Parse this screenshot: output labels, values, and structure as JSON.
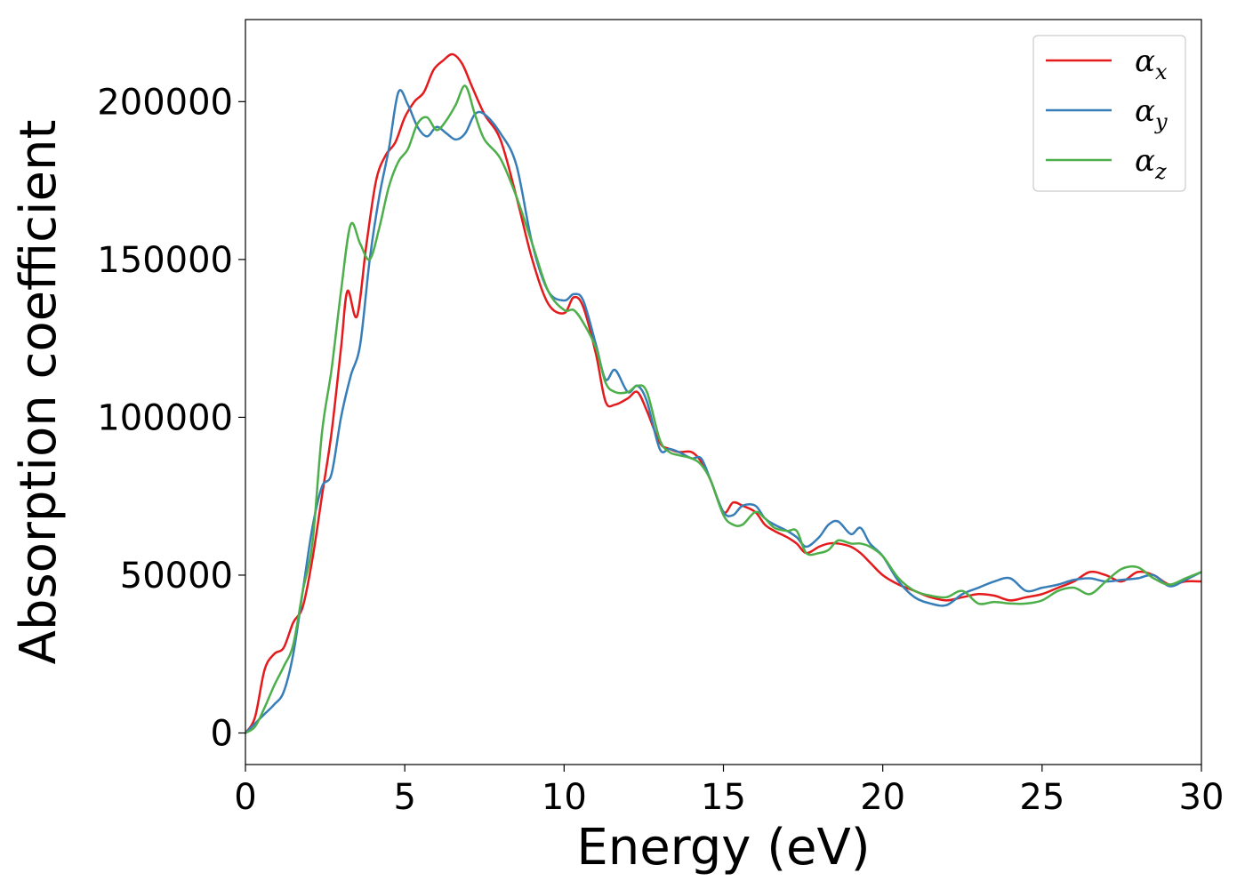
{
  "chart_data": {
    "type": "line",
    "title": "",
    "xlabel": "Energy (eV)",
    "ylabel": "Absorption coefficient",
    "xlim": [
      0,
      30
    ],
    "ylim": [
      -10000,
      226000
    ],
    "xticks": [
      0,
      5,
      10,
      15,
      20,
      25,
      30
    ],
    "yticks": [
      0,
      50000,
      100000,
      150000,
      200000
    ],
    "legend_position": "top-right",
    "grid": false,
    "series": [
      {
        "name": "α",
        "subscript": "x",
        "color": "#e41a1c",
        "x": [
          0,
          0.3,
          0.6,
          0.9,
          1.2,
          1.5,
          1.8,
          2.1,
          2.4,
          2.7,
          3.0,
          3.2,
          3.5,
          3.8,
          4.1,
          4.4,
          4.7,
          5.0,
          5.3,
          5.6,
          5.9,
          6.2,
          6.5,
          6.8,
          7.1,
          7.5,
          8.0,
          8.5,
          9.0,
          9.5,
          10.0,
          10.3,
          10.6,
          11.0,
          11.3,
          11.6,
          12.0,
          12.3,
          12.6,
          13.0,
          13.3,
          13.6,
          14.0,
          14.3,
          14.6,
          15.0,
          15.3,
          15.6,
          16.0,
          16.3,
          16.6,
          17.0,
          17.3,
          17.6,
          18.0,
          18.3,
          18.6,
          19.0,
          19.3,
          19.6,
          20.0,
          20.5,
          21.0,
          21.5,
          22.0,
          22.5,
          23.0,
          23.5,
          24.0,
          24.5,
          25.0,
          25.5,
          26.0,
          26.5,
          27.0,
          27.5,
          28.0,
          28.5,
          29.0,
          29.5,
          30.0
        ],
        "y": [
          0,
          5000,
          20000,
          25000,
          27000,
          35000,
          40000,
          55000,
          75000,
          95000,
          122000,
          140000,
          132000,
          155000,
          175000,
          183000,
          187000,
          195000,
          200000,
          203000,
          210000,
          213000,
          215000,
          212000,
          205000,
          196000,
          188000,
          170000,
          150000,
          136000,
          133000,
          138000,
          135000,
          120000,
          105000,
          104000,
          106000,
          108000,
          102000,
          92000,
          90000,
          89000,
          89000,
          86000,
          80000,
          70000,
          73000,
          72000,
          70000,
          66000,
          64000,
          62000,
          60000,
          57000,
          59000,
          60000,
          60000,
          59000,
          57000,
          54000,
          50000,
          47000,
          45000,
          43000,
          42000,
          43000,
          44000,
          43500,
          42000,
          43000,
          44000,
          46000,
          48000,
          51000,
          50000,
          48000,
          51000,
          50000,
          47000,
          48000,
          48000
        ]
      },
      {
        "name": "α",
        "subscript": "y",
        "color": "#377eb8",
        "x": [
          0,
          0.3,
          0.6,
          0.9,
          1.2,
          1.5,
          1.8,
          2.1,
          2.4,
          2.7,
          3.0,
          3.3,
          3.6,
          3.9,
          4.2,
          4.5,
          4.8,
          5.1,
          5.4,
          5.7,
          6.0,
          6.3,
          6.6,
          6.9,
          7.2,
          7.5,
          8.0,
          8.5,
          9.0,
          9.5,
          10.0,
          10.3,
          10.6,
          11.0,
          11.3,
          11.6,
          12.0,
          12.3,
          12.6,
          13.0,
          13.3,
          13.6,
          14.0,
          14.3,
          14.6,
          15.0,
          15.3,
          15.6,
          16.0,
          16.3,
          16.6,
          17.0,
          17.3,
          17.6,
          18.0,
          18.3,
          18.6,
          19.0,
          19.3,
          19.6,
          20.0,
          20.5,
          21.0,
          21.5,
          22.0,
          22.5,
          23.0,
          23.5,
          24.0,
          24.5,
          25.0,
          25.5,
          26.0,
          26.5,
          27.0,
          27.5,
          28.0,
          28.5,
          29.0,
          29.5,
          30.0
        ],
        "y": [
          0,
          3000,
          6000,
          9000,
          13000,
          25000,
          45000,
          65000,
          78000,
          82000,
          100000,
          113000,
          123000,
          150000,
          170000,
          185000,
          203000,
          199000,
          192000,
          189000,
          192000,
          190000,
          188000,
          190000,
          196000,
          196000,
          190000,
          180000,
          155000,
          140000,
          137000,
          139000,
          137000,
          123000,
          112000,
          115000,
          108000,
          110000,
          105000,
          90000,
          90000,
          89000,
          87000,
          87000,
          80000,
          70000,
          69000,
          72000,
          72000,
          68000,
          66000,
          64000,
          62000,
          59000,
          62000,
          66000,
          67000,
          63000,
          65000,
          60000,
          56000,
          48000,
          43000,
          41000,
          40500,
          44000,
          46000,
          48000,
          49000,
          45000,
          46000,
          47000,
          48500,
          49000,
          48000,
          48500,
          49000,
          50000,
          46500,
          48500,
          51000
        ]
      },
      {
        "name": "α",
        "subscript": "z",
        "color": "#4daf4a",
        "x": [
          0,
          0.3,
          0.6,
          0.9,
          1.2,
          1.5,
          1.8,
          2.1,
          2.4,
          2.7,
          3.0,
          3.3,
          3.6,
          3.9,
          4.2,
          4.5,
          4.8,
          5.1,
          5.4,
          5.7,
          6.0,
          6.3,
          6.6,
          6.9,
          7.2,
          7.5,
          8.0,
          8.5,
          9.0,
          9.5,
          10.0,
          10.3,
          10.6,
          11.0,
          11.3,
          11.6,
          12.0,
          12.3,
          12.6,
          13.0,
          13.3,
          13.6,
          14.0,
          14.3,
          14.6,
          15.0,
          15.3,
          15.6,
          16.0,
          16.3,
          16.6,
          17.0,
          17.3,
          17.6,
          18.0,
          18.3,
          18.6,
          19.0,
          19.3,
          19.6,
          20.0,
          20.5,
          21.0,
          21.5,
          22.0,
          22.5,
          23.0,
          23.5,
          24.0,
          24.5,
          25.0,
          25.5,
          26.0,
          26.5,
          27.0,
          27.5,
          28.0,
          28.5,
          29.0,
          29.5,
          30.0
        ],
        "y": [
          0,
          2000,
          8000,
          15000,
          21000,
          28000,
          45000,
          60000,
          95000,
          115000,
          140000,
          161000,
          155000,
          150000,
          160000,
          173000,
          181000,
          185000,
          193000,
          195000,
          191000,
          194000,
          199000,
          205000,
          196000,
          188000,
          182000,
          170000,
          155000,
          140000,
          134000,
          134000,
          130000,
          122000,
          111000,
          108000,
          108000,
          110000,
          108000,
          93000,
          89000,
          88000,
          87000,
          85000,
          80000,
          69000,
          66000,
          66000,
          70000,
          68000,
          65000,
          64000,
          64000,
          57000,
          57000,
          58000,
          61000,
          60000,
          60000,
          59000,
          56000,
          49000,
          45000,
          43500,
          43000,
          45000,
          41000,
          41500,
          41000,
          41000,
          42000,
          45000,
          46000,
          44000,
          48000,
          52000,
          52500,
          49000,
          47000,
          49000,
          51000
        ]
      }
    ]
  }
}
